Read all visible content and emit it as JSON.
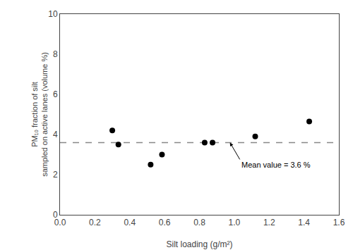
{
  "chart_data": {
    "type": "scatter",
    "xlabel": "Silt loading (g/m²)",
    "ylabel": "PM₁₀ fraction of silt\nsampled on active lanes (volume %)",
    "x": [
      0.3,
      0.335,
      0.52,
      0.585,
      0.83,
      0.875,
      1.12,
      1.43
    ],
    "values": [
      4.2,
      3.5,
      2.5,
      3.0,
      3.6,
      3.6,
      3.9,
      4.65
    ],
    "color": "black",
    "marker": "circle",
    "xlim": [
      0.0,
      1.6
    ],
    "ylim": [
      0,
      10
    ],
    "xticks": [
      {
        "value": 0.0,
        "label": "0.0"
      },
      0.2,
      0.4,
      0.6,
      0.8,
      {
        "value": 1.0,
        "label": "1.0"
      },
      1.2,
      1.4,
      1.6
    ],
    "yticks": [
      0,
      2,
      4,
      6,
      8,
      10
    ],
    "grid": false,
    "mean_line": {
      "value": 3.6,
      "color": "#888888",
      "line_style": "dashed"
    },
    "annotations": [
      {
        "text": "Mean value = 3.6 %",
        "x": 0.975,
        "y": 3.6
      }
    ]
  }
}
